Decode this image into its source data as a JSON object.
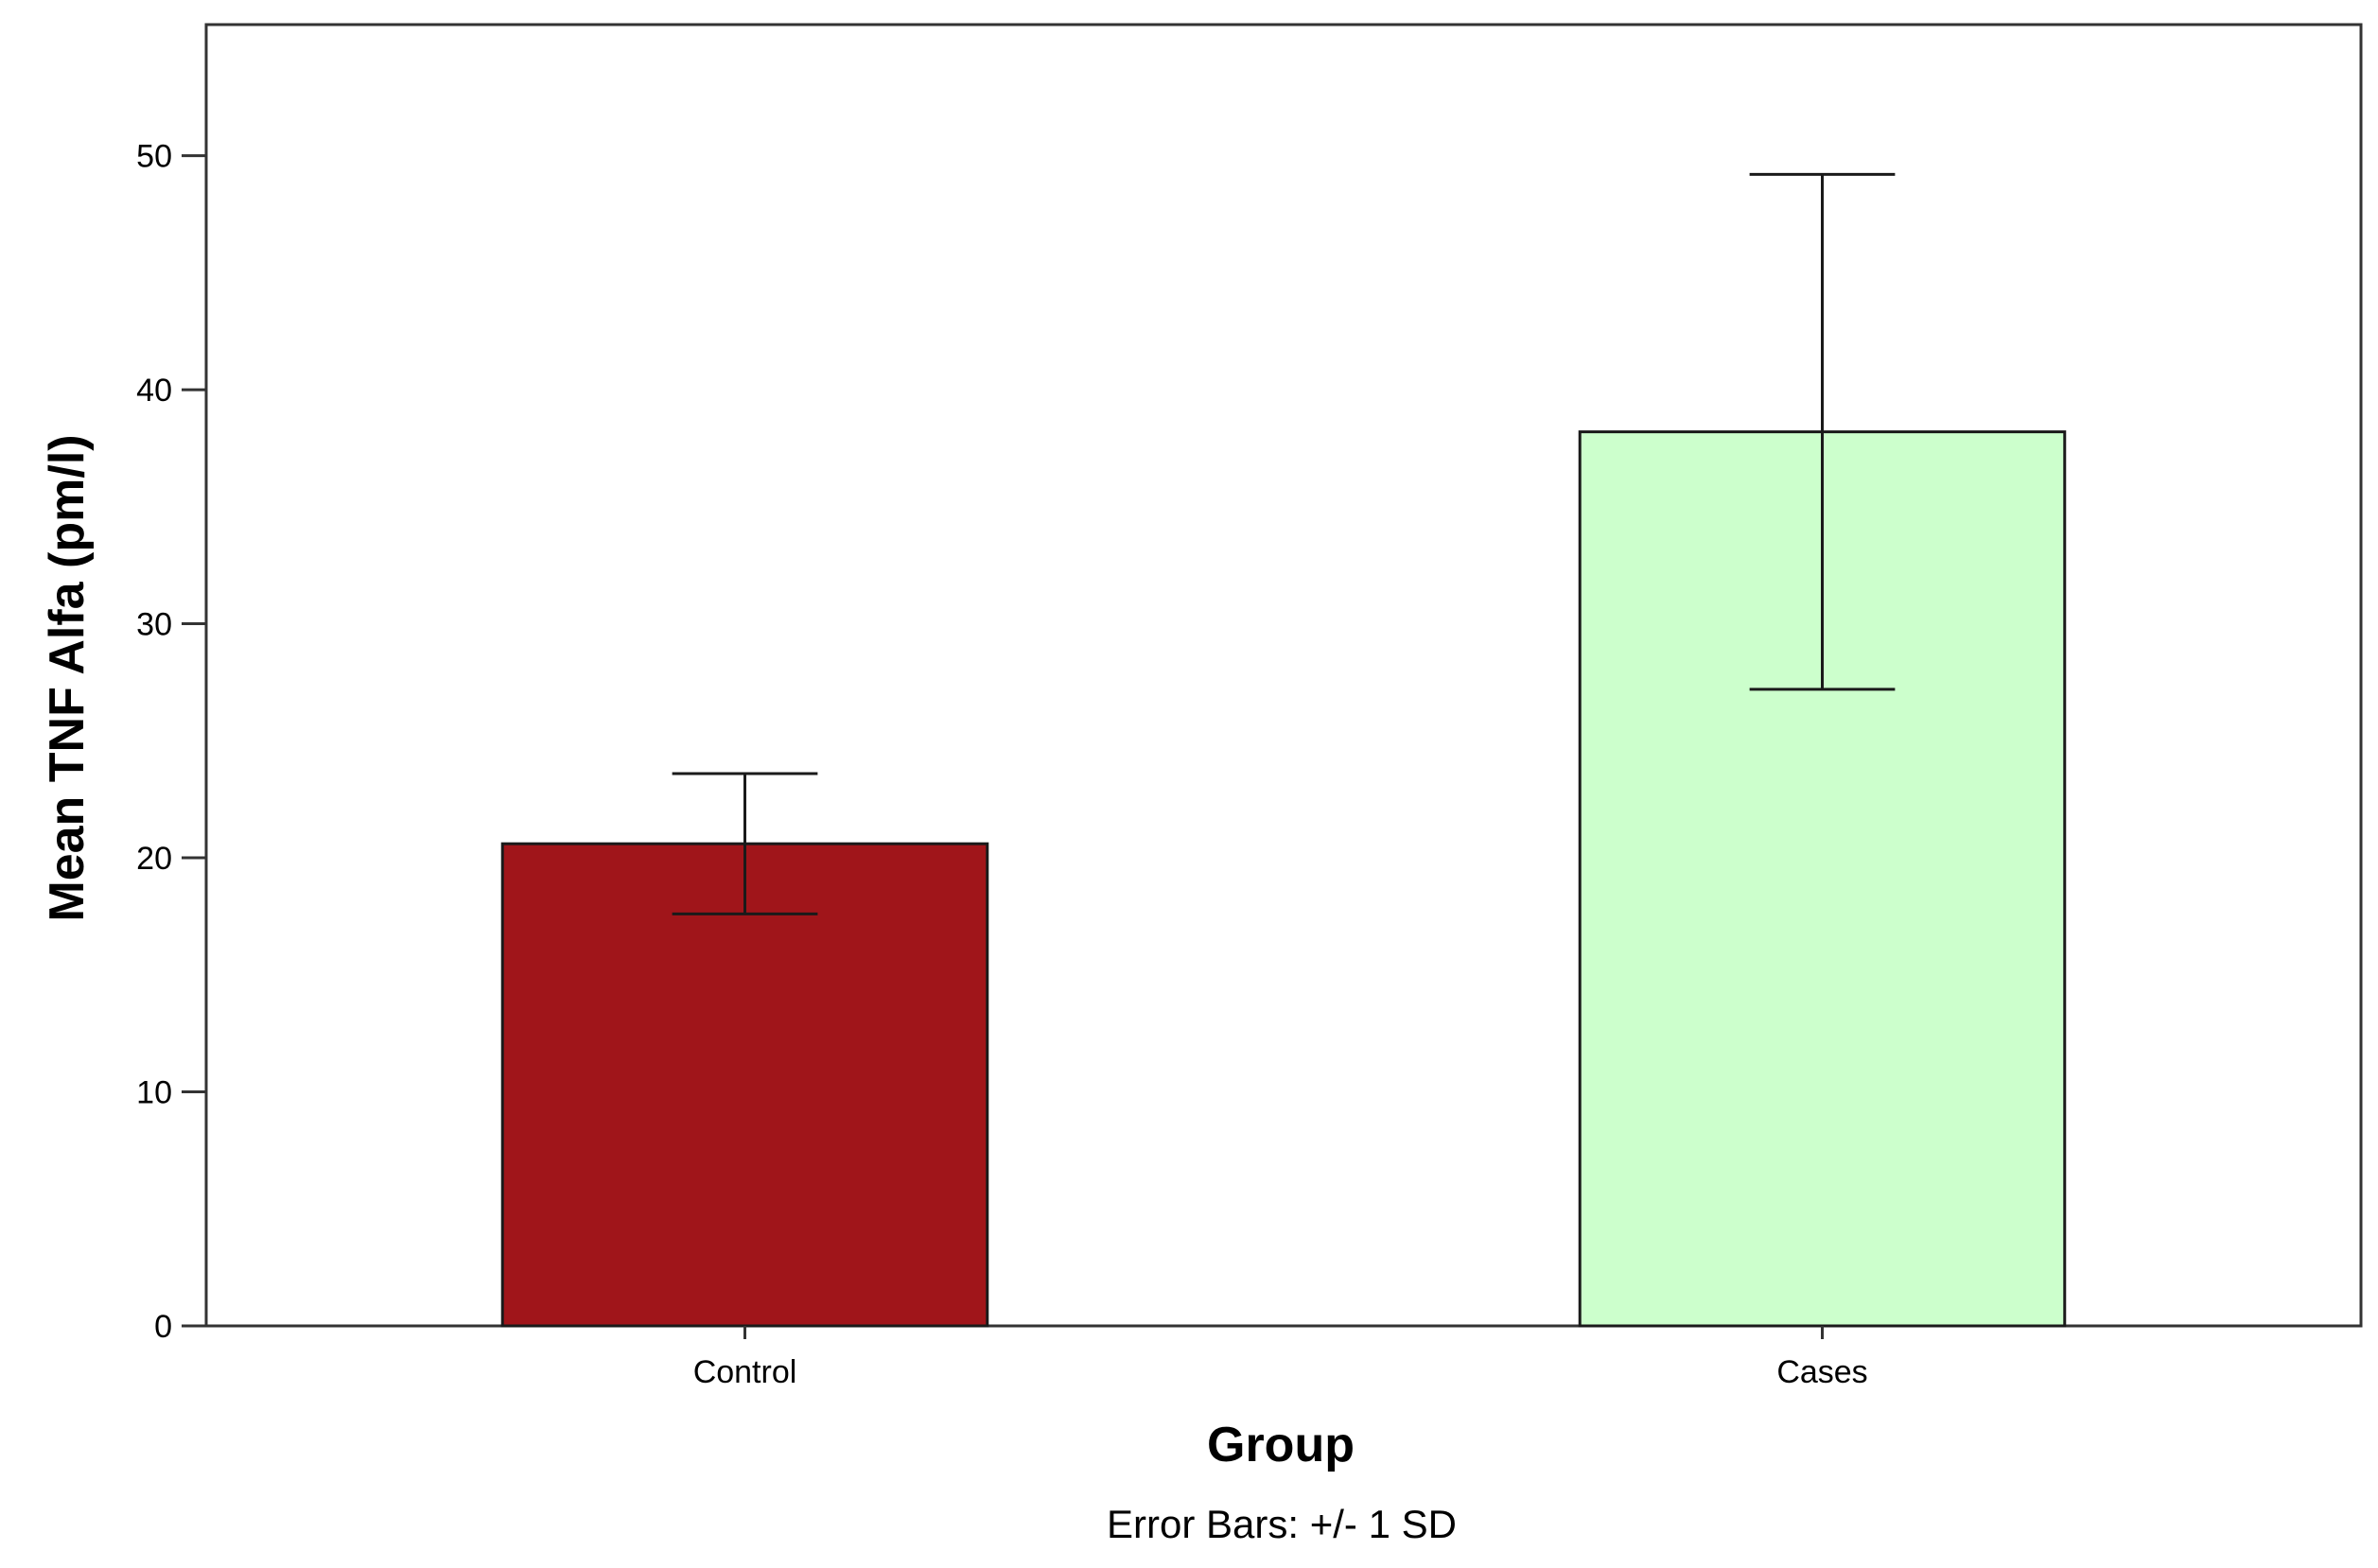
{
  "chart_data": {
    "type": "bar",
    "categories": [
      "Control",
      "Cases"
    ],
    "values": [
      20.6,
      38.2
    ],
    "error_sd": [
      3.0,
      11.0
    ],
    "bar_colors": [
      "#a0151a",
      "#ccffcc"
    ],
    "title": "",
    "xlabel": "Group",
    "ylabel": "Mean TNF Alfa (pm/l)",
    "ylim": [
      0,
      55.6
    ],
    "yticks": [
      0,
      10,
      20,
      30,
      40,
      50
    ],
    "footnote": "Error Bars: +/- 1 SD",
    "grid": false,
    "legend": "none"
  }
}
